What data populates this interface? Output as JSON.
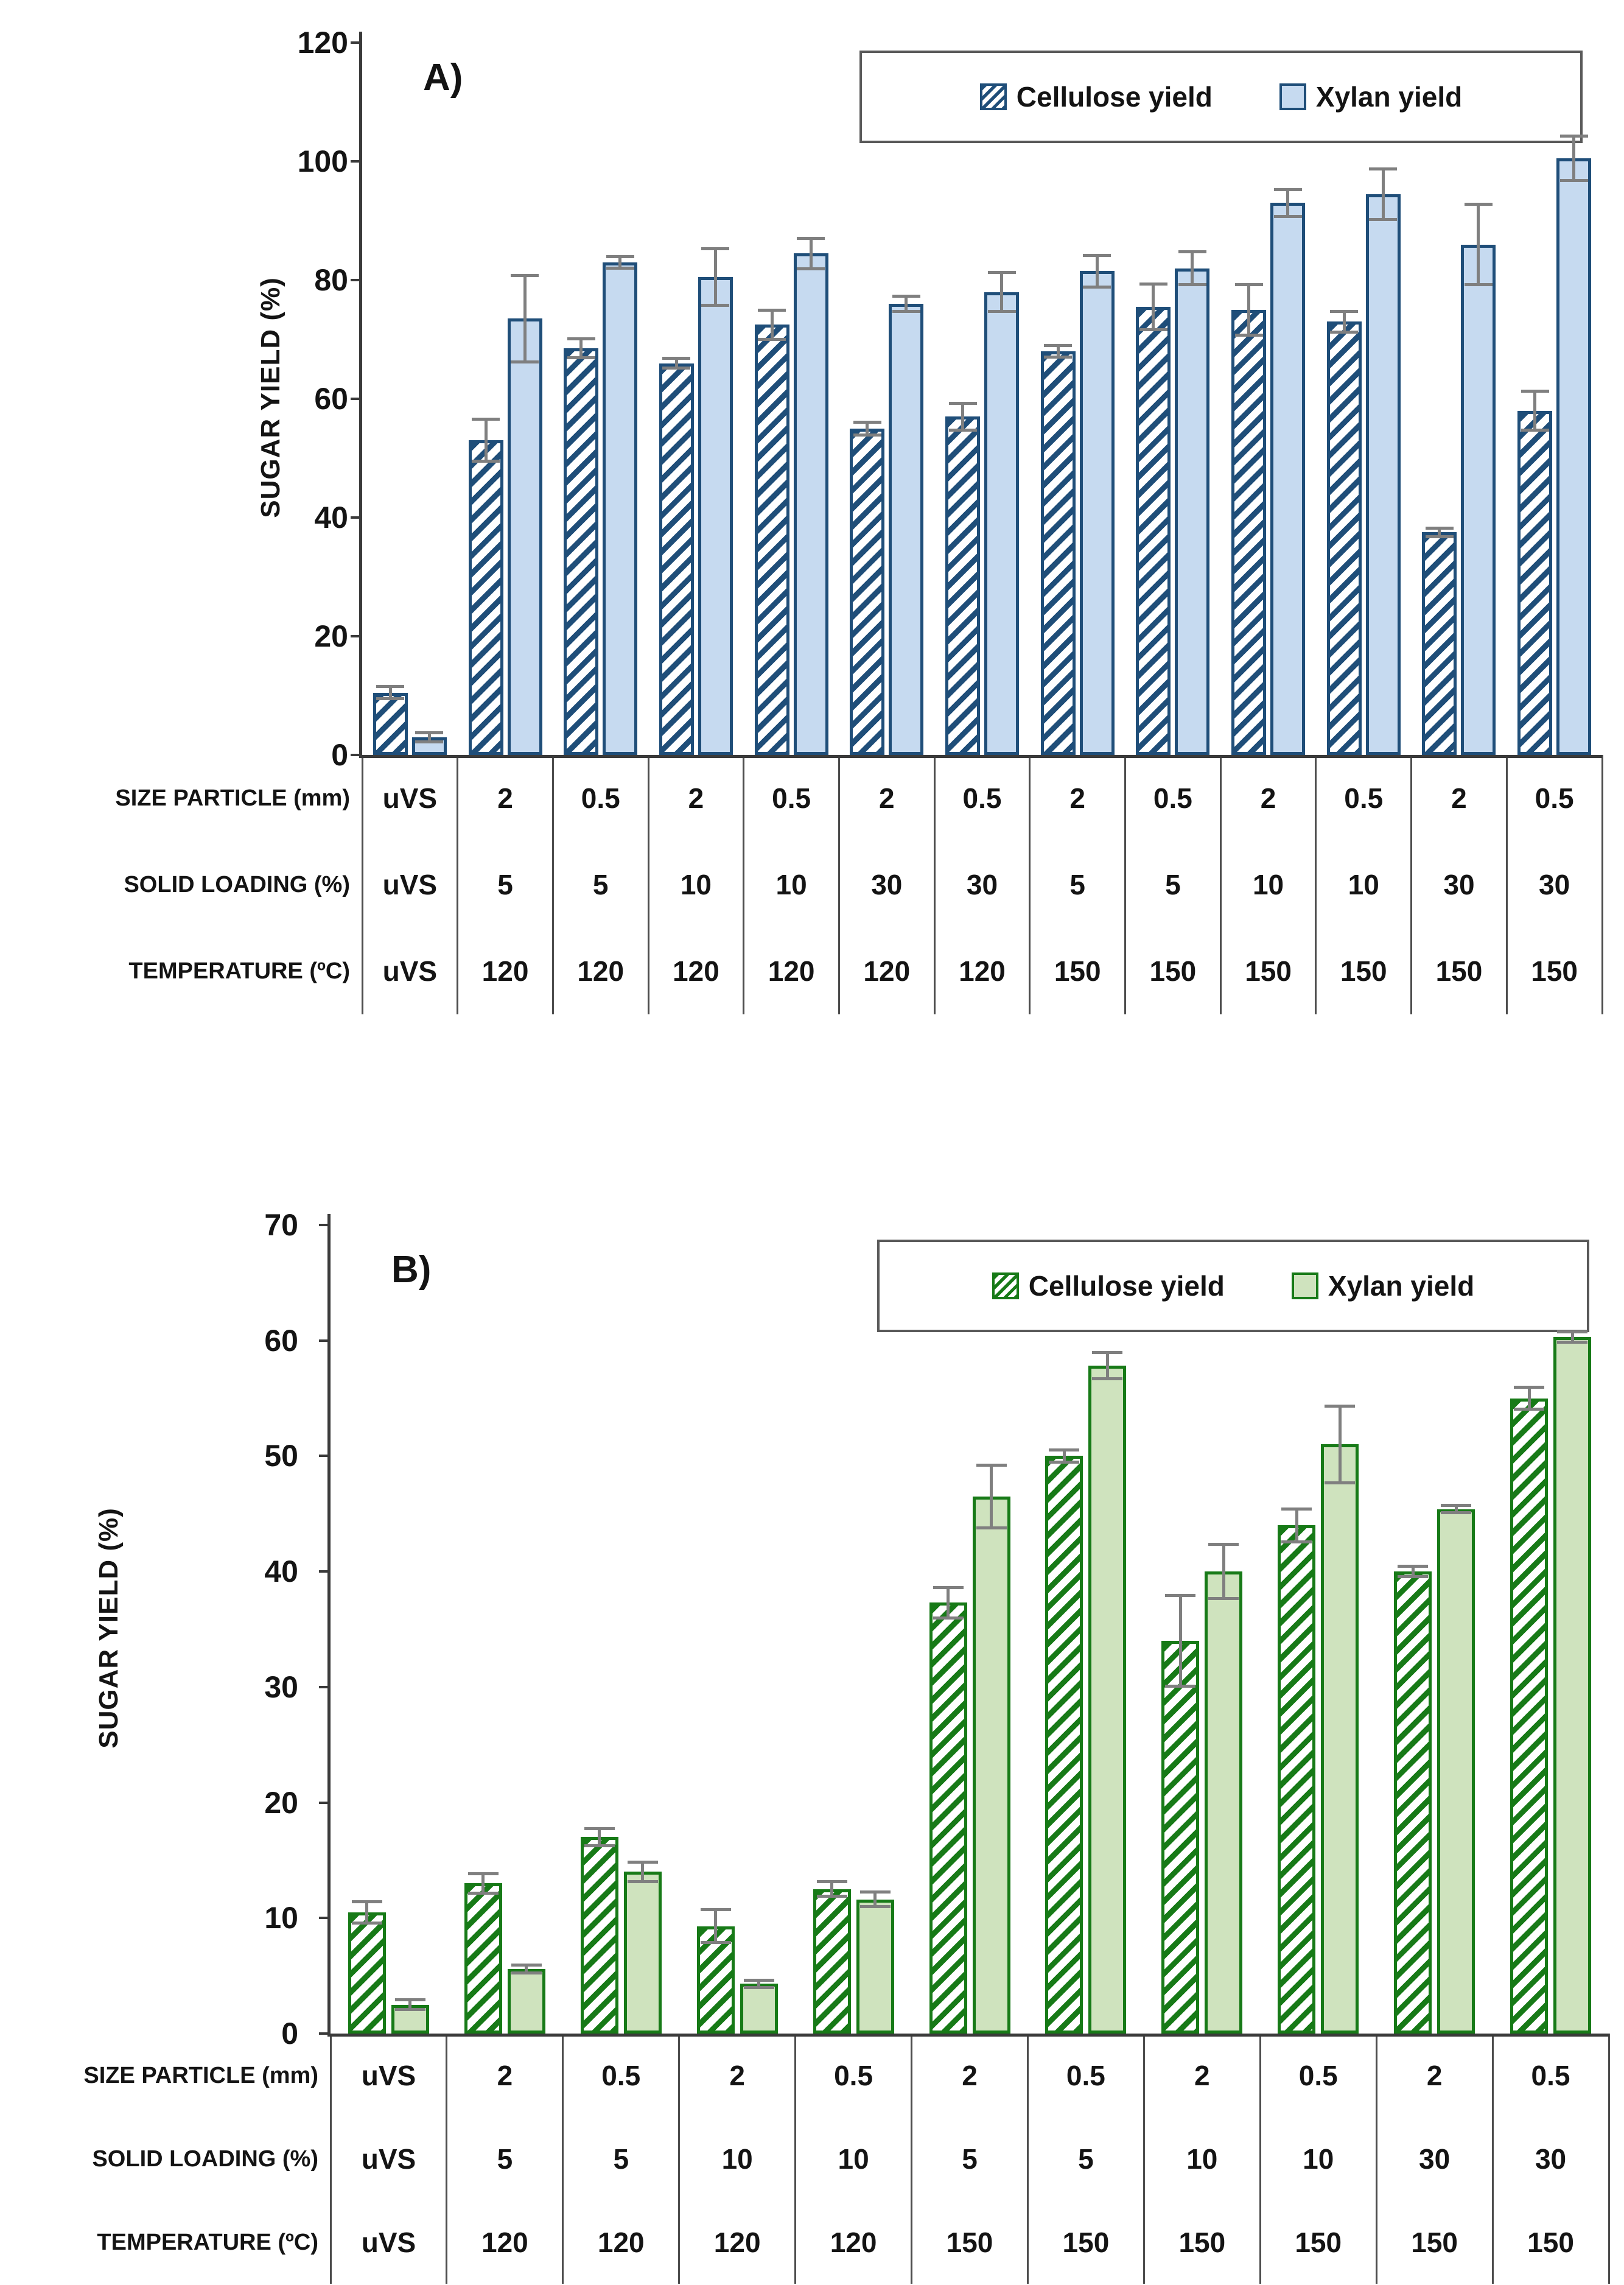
{
  "page": {
    "background": "#ffffff"
  },
  "chart_data": [
    {
      "type": "bar",
      "panel_label": "A)",
      "ylabel": "SUGAR YIELD (%)",
      "ymax": 120,
      "ylim": [
        0,
        120
      ],
      "grid": "off",
      "legend_position": "top-right",
      "yticks": [
        "0",
        "20",
        "40",
        "60",
        "80",
        "100",
        "120"
      ],
      "ytick_values": [
        0,
        20,
        40,
        60,
        80,
        100,
        120
      ],
      "legend": [
        {
          "label": "Cellulose yield",
          "style": "hatched"
        },
        {
          "label": "Xylan yield",
          "style": "solid"
        }
      ],
      "colors": {
        "border": "#1F4E79",
        "fill": "#C6DAF0",
        "hatch_bg": "#FFFFFF",
        "error": "#7F7F7F",
        "axis": "#3A3A3A",
        "grid_line": "#4D4D4D",
        "text": "#141414",
        "legend_border": "#595959"
      },
      "categories": [
        "uVS",
        "2/5/120",
        "0.5/5/120",
        "2/10/120",
        "0.5/10/120",
        "2/30/120",
        "0.5/30/120",
        "2/5/150",
        "0.5/5/150",
        "2/10/150",
        "0.5/10/150",
        "2/30/150",
        "0.5/30/150"
      ],
      "series": [
        {
          "name": "Cellulose yield",
          "style": "hatched",
          "values": [
            10.5,
            53,
            68.5,
            66,
            72.5,
            55,
            57,
            68,
            75.5,
            75,
            73,
            37.5,
            58
          ],
          "errors": [
            0.8,
            3.3,
            1.3,
            0.6,
            2.2,
            0.8,
            2.0,
            0.7,
            3.6,
            4.0,
            1.5,
            0.5,
            3.0
          ]
        },
        {
          "name": "Xylan yield",
          "style": "solid",
          "values": [
            3,
            73.5,
            83,
            80.5,
            84.5,
            76,
            78,
            81.5,
            82,
            93,
            94.5,
            86,
            100.5
          ],
          "errors": [
            0.5,
            7.0,
            0.7,
            4.5,
            2.3,
            1.0,
            3.0,
            2.4,
            2.5,
            2.0,
            4.0,
            6.5,
            3.5
          ]
        }
      ],
      "table": {
        "rows": [
          {
            "label": "SIZE PARTICLE (mm)",
            "values": [
              "uVS",
              "2",
              "0.5",
              "2",
              "0.5",
              "2",
              "0.5",
              "2",
              "0.5",
              "2",
              "0.5",
              "2",
              "0.5"
            ]
          },
          {
            "label": "SOLID LOADING (%)",
            "values": [
              "uVS",
              "5",
              "5",
              "10",
              "10",
              "30",
              "30",
              "5",
              "5",
              "10",
              "10",
              "30",
              "30"
            ]
          },
          {
            "label": "TEMPERATURE (ºC)",
            "values": [
              "uVS",
              "120",
              "120",
              "120",
              "120",
              "120",
              "120",
              "150",
              "150",
              "150",
              "150",
              "150",
              "150"
            ]
          }
        ]
      }
    },
    {
      "type": "bar",
      "panel_label": "B)",
      "ylabel": "SUGAR YIELD (%)",
      "ymax": 70,
      "ylim": [
        0,
        70
      ],
      "grid": "off",
      "legend_position": "top-right",
      "yticks": [
        "0",
        "10",
        "20",
        "30",
        "40",
        "50",
        "60",
        "70"
      ],
      "ytick_values": [
        0,
        10,
        20,
        30,
        40,
        50,
        60,
        70
      ],
      "legend": [
        {
          "label": "Cellulose yield",
          "style": "hatched"
        },
        {
          "label": "Xylan yield",
          "style": "solid"
        }
      ],
      "colors": {
        "border": "#177A17",
        "fill": "#CFE3BE",
        "hatch_bg": "#FFFFFF",
        "error": "#7F7F7F",
        "axis": "#3A3A3A",
        "grid_line": "#4D4D4D",
        "text": "#141414",
        "legend_border": "#595959"
      },
      "categories": [
        "uVS",
        "2/5/120",
        "0.5/5/120",
        "2/10/120",
        "0.5/10/120",
        "2/5/150",
        "0.5/5/150",
        "2/10/150",
        "0.5/10/150",
        "2/30/150",
        "0.5/30/150"
      ],
      "series": [
        {
          "name": "Cellulose yield",
          "style": "hatched",
          "values": [
            10.5,
            13,
            17,
            9.3,
            12.5,
            37.3,
            50,
            34,
            44,
            40,
            55
          ],
          "errors": [
            0.8,
            0.7,
            0.6,
            1.3,
            0.5,
            1.2,
            0.4,
            3.8,
            1.3,
            0.3,
            0.8
          ]
        },
        {
          "name": "Xylan yield",
          "style": "solid",
          "values": [
            2.5,
            5.6,
            14,
            4.3,
            11.6,
            46.5,
            57.8,
            40,
            51,
            45.4,
            60.3
          ],
          "errors": [
            0.3,
            0.2,
            0.7,
            0.2,
            0.5,
            2.6,
            1.0,
            2.2,
            3.2,
            0.2,
            0.3
          ]
        }
      ],
      "table": {
        "rows": [
          {
            "label": "SIZE PARTICLE (mm)",
            "values": [
              "uVS",
              "2",
              "0.5",
              "2",
              "0.5",
              "2",
              "0.5",
              "2",
              "0.5",
              "2",
              "0.5"
            ]
          },
          {
            "label": "SOLID LOADING (%)",
            "values": [
              "uVS",
              "5",
              "5",
              "10",
              "10",
              "5",
              "5",
              "10",
              "10",
              "30",
              "30"
            ]
          },
          {
            "label": "TEMPERATURE (ºC)",
            "values": [
              "uVS",
              "120",
              "120",
              "120",
              "120",
              "150",
              "150",
              "150",
              "150",
              "150",
              "150"
            ]
          }
        ]
      }
    }
  ]
}
